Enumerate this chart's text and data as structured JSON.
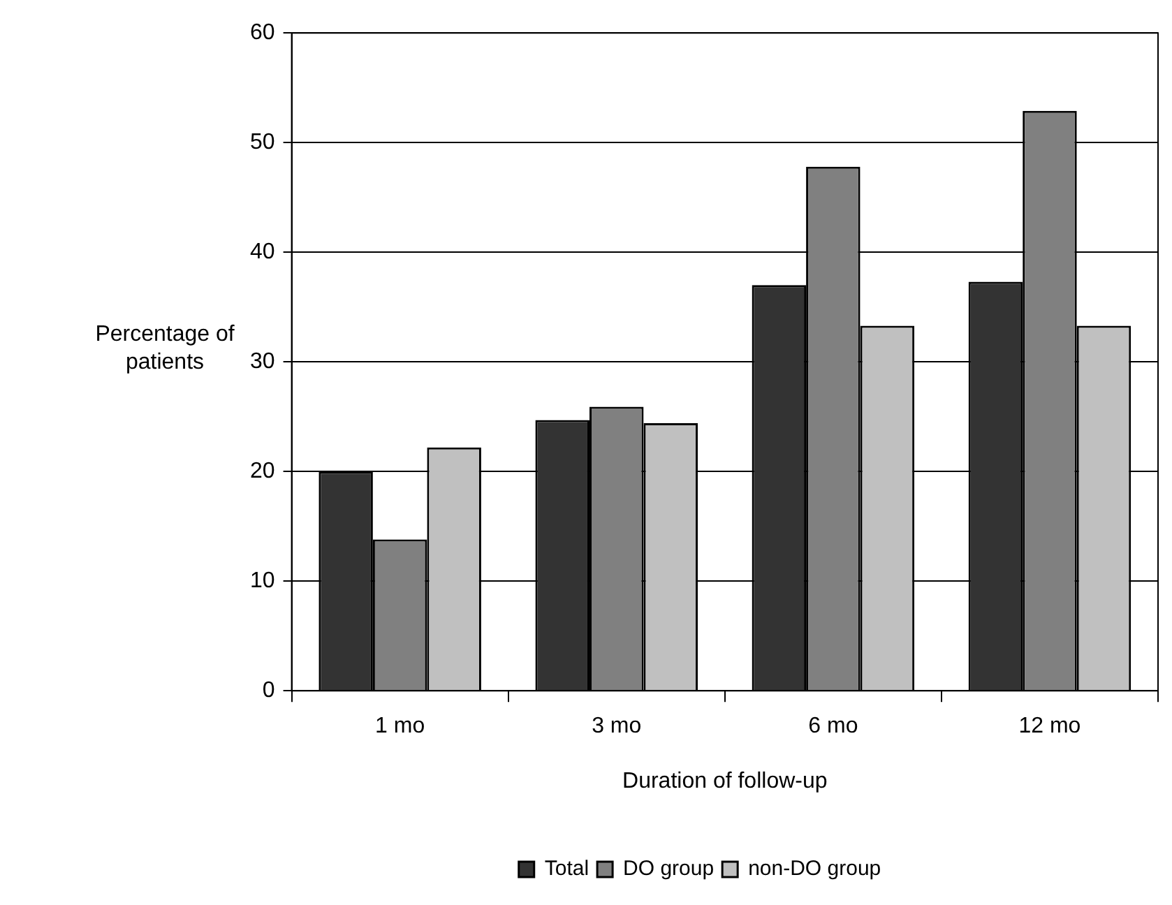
{
  "chart_data": {
    "type": "bar",
    "xlabel": "Duration of follow-up",
    "ylabel": "Percentage of patients",
    "categories": [
      "1 mo",
      "3 mo",
      "6 mo",
      "12 mo"
    ],
    "series": [
      {
        "name": "Total",
        "color": "#333333",
        "values": [
          20.0,
          24.7,
          37.0,
          37.3
        ]
      },
      {
        "name": "DO group",
        "color": "#808080",
        "values": [
          13.8,
          25.9,
          47.8,
          52.9
        ]
      },
      {
        "name": "non-DO group",
        "color": "#c0c0c0",
        "values": [
          22.2,
          24.4,
          33.3,
          33.3
        ]
      }
    ],
    "ylim": [
      0,
      60
    ],
    "yticks": [
      0,
      10,
      20,
      30,
      40,
      50,
      60
    ],
    "grid": "y",
    "legend": "bottom"
  }
}
